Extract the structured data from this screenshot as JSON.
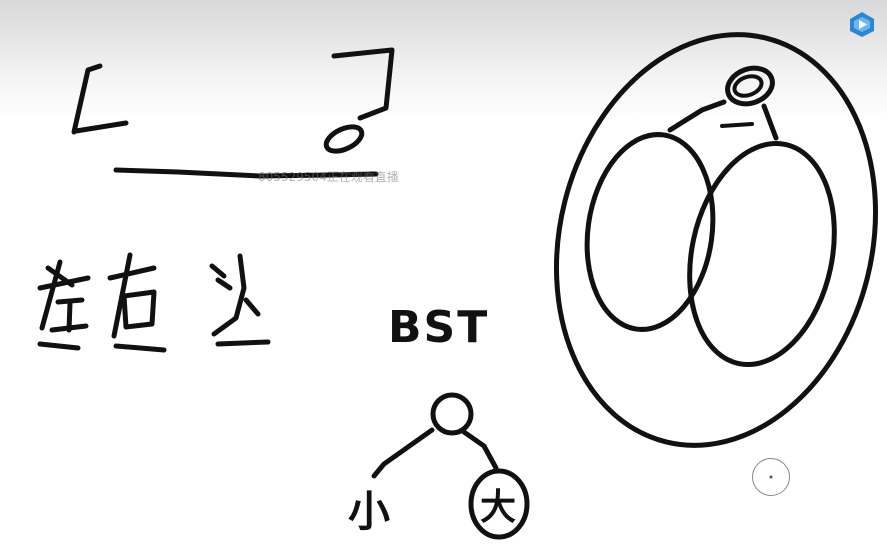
{
  "watermark": "805529504正在观看直播",
  "sketch": {
    "chars_row": [
      "左",
      "右",
      "头"
    ],
    "bst_label": "BST",
    "small_label": "小",
    "big_label": "大"
  },
  "icons": {
    "app": "video-app-icon",
    "cursor": "cursor-ring-icon"
  },
  "colors": {
    "ink": "#111111",
    "icon_blue": "#2b86d6"
  }
}
